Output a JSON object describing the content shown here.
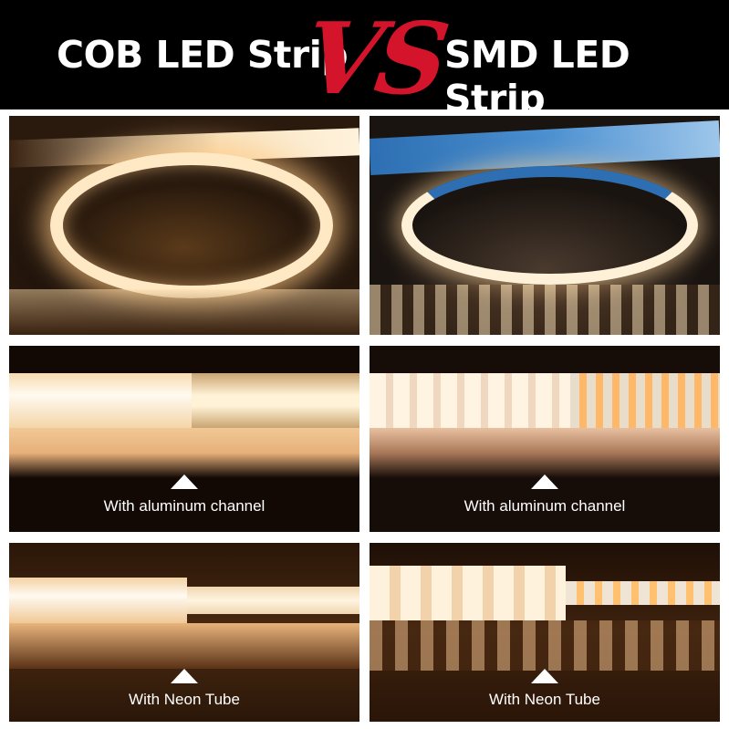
{
  "header": {
    "left_title": "COB LED Strip",
    "vs": "VS",
    "right_title": "SMD LED Strip",
    "vs_color": "#d4142b"
  },
  "panels": [
    {
      "id": "cob-coil",
      "caption": ""
    },
    {
      "id": "smd-coil",
      "caption": ""
    },
    {
      "id": "cob-aluminum",
      "caption": "With aluminum channel"
    },
    {
      "id": "smd-aluminum",
      "caption": "With aluminum channel"
    },
    {
      "id": "cob-neon",
      "caption": "With Neon Tube"
    },
    {
      "id": "smd-neon",
      "caption": "With Neon Tube"
    }
  ],
  "icons": {
    "caption_marker": "triangle-up-icon"
  }
}
